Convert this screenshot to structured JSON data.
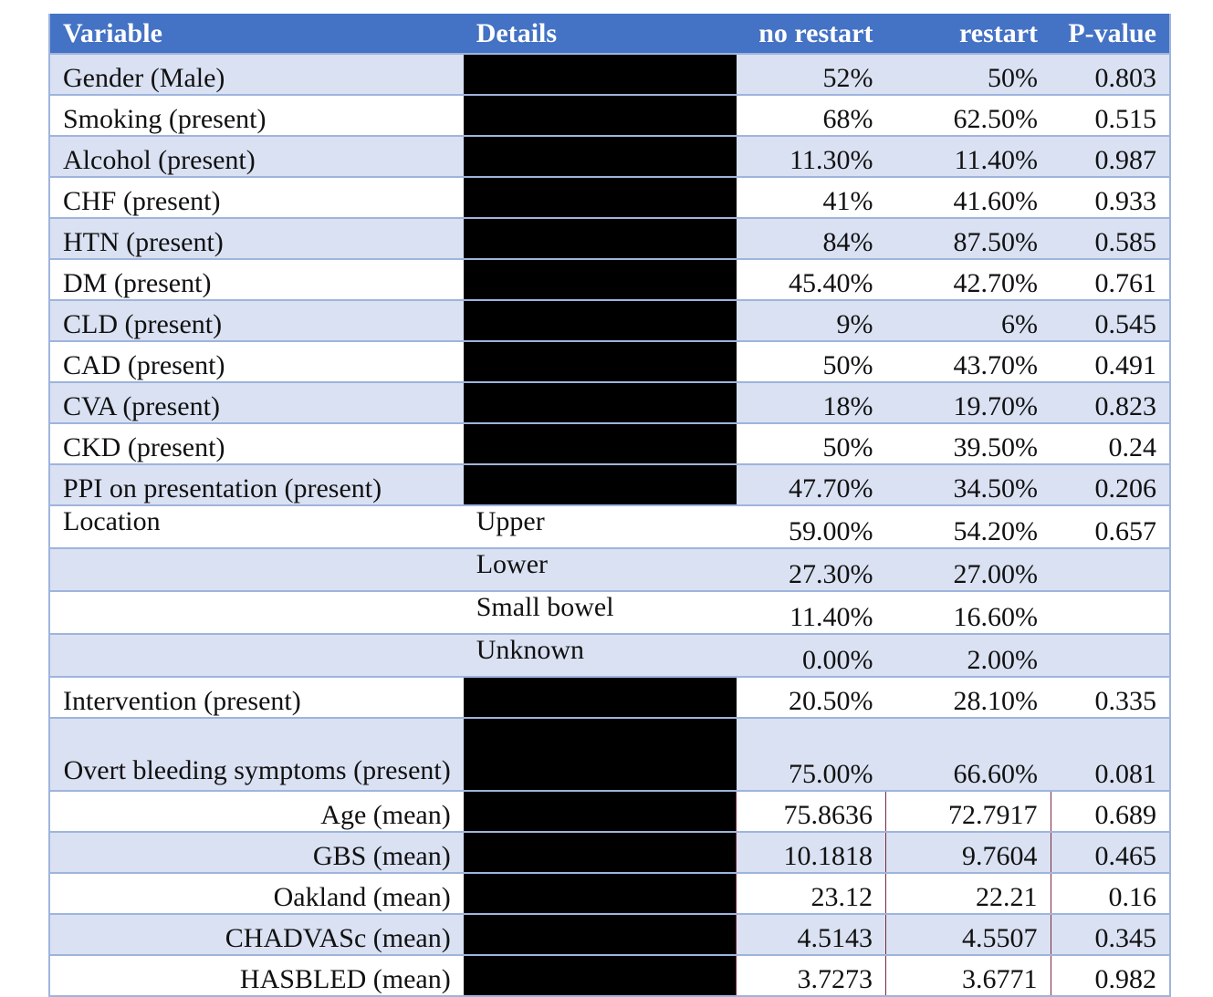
{
  "headers": {
    "variable": "Variable",
    "details": "Details",
    "no_restart": "no restart",
    "restart": "restart",
    "p_value": "P-value"
  },
  "rows": [
    {
      "variable": "Gender (Male)",
      "details": "",
      "no_restart": "52%",
      "restart": "50%",
      "p": "0.803"
    },
    {
      "variable": "Smoking (present)",
      "details": "",
      "no_restart": "68%",
      "restart": "62.50%",
      "p": "0.515"
    },
    {
      "variable": "Alcohol (present)",
      "details": "",
      "no_restart": "11.30%",
      "restart": "11.40%",
      "p": "0.987"
    },
    {
      "variable": "CHF (present)",
      "details": "",
      "no_restart": "41%",
      "restart": "41.60%",
      "p": "0.933"
    },
    {
      "variable": "HTN (present)",
      "details": "",
      "no_restart": "84%",
      "restart": "87.50%",
      "p": "0.585"
    },
    {
      "variable": "DM (present)",
      "details": "",
      "no_restart": "45.40%",
      "restart": "42.70%",
      "p": "0.761"
    },
    {
      "variable": "CLD (present)",
      "details": "",
      "no_restart": "9%",
      "restart": "6%",
      "p": "0.545"
    },
    {
      "variable": "CAD (present)",
      "details": "",
      "no_restart": "50%",
      "restart": "43.70%",
      "p": "0.491"
    },
    {
      "variable": "CVA (present)",
      "details": "",
      "no_restart": "18%",
      "restart": "19.70%",
      "p": "0.823"
    },
    {
      "variable": "CKD (present)",
      "details": "",
      "no_restart": "50%",
      "restart": "39.50%",
      "p": "0.24"
    },
    {
      "variable": "PPI on presentation (present)",
      "details": "",
      "no_restart": "47.70%",
      "restart": "34.50%",
      "p": "0.206"
    },
    {
      "variable": "Location",
      "details": "Upper",
      "no_restart": "59.00%",
      "restart": "54.20%",
      "p": "0.657"
    },
    {
      "variable": "",
      "details": "Lower",
      "no_restart": "27.30%",
      "restart": "27.00%",
      "p": ""
    },
    {
      "variable": "",
      "details": "Small bowel",
      "no_restart": "11.40%",
      "restart": "16.60%",
      "p": ""
    },
    {
      "variable": "",
      "details": "Unknown",
      "no_restart": "0.00%",
      "restart": "2.00%",
      "p": ""
    },
    {
      "variable": "Intervention (present)",
      "details": "",
      "no_restart": "20.50%",
      "restart": "28.10%",
      "p": "0.335"
    },
    {
      "variable": "Overt bleeding symptoms (present)",
      "details": "",
      "no_restart": "75.00%",
      "restart": "66.60%",
      "p": "0.081"
    },
    {
      "variable": "Age (mean)",
      "details": "",
      "no_restart": "75.8636",
      "restart": "72.7917",
      "p": "0.689"
    },
    {
      "variable": "GBS (mean)",
      "details": "",
      "no_restart": "10.1818",
      "restart": "9.7604",
      "p": "0.465"
    },
    {
      "variable": "Oakland (mean)",
      "details": "",
      "no_restart": "23.12",
      "restart": "22.21",
      "p": "0.16"
    },
    {
      "variable": "CHADVASc (mean)",
      "details": "",
      "no_restart": "4.5143",
      "restart": "4.5507",
      "p": "0.345"
    },
    {
      "variable": "HASBLED (mean)",
      "details": "",
      "no_restart": "3.7273",
      "restart": "3.6771",
      "p": "0.982"
    }
  ],
  "colors": {
    "header_bg": "#4472c4",
    "header_text": "#ffffff",
    "band": "#d9e1f2",
    "redacted": "#000000",
    "rule": "#9fb4dd"
  }
}
